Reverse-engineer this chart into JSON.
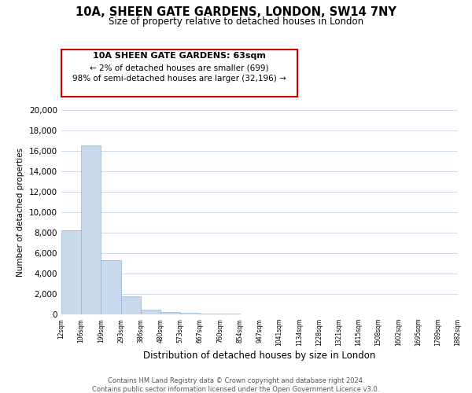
{
  "title": "10A, SHEEN GATE GARDENS, LONDON, SW14 7NY",
  "subtitle": "Size of property relative to detached houses in London",
  "bar_values": [
    8200,
    16500,
    5300,
    1800,
    500,
    200,
    150,
    100,
    50,
    0,
    0,
    0,
    0,
    0,
    0,
    0,
    0,
    0,
    0,
    0
  ],
  "categories": [
    "12sqm",
    "106sqm",
    "199sqm",
    "293sqm",
    "386sqm",
    "480sqm",
    "573sqm",
    "667sqm",
    "760sqm",
    "854sqm",
    "947sqm",
    "1041sqm",
    "1134sqm",
    "1228sqm",
    "1321sqm",
    "1415sqm",
    "1508sqm",
    "1602sqm",
    "1695sqm",
    "1789sqm",
    "1882sqm"
  ],
  "bar_color": "#c8d9ed",
  "bar_edge_color": "#94b4d4",
  "ylim": [
    0,
    20000
  ],
  "yticks": [
    0,
    2000,
    4000,
    6000,
    8000,
    10000,
    12000,
    14000,
    16000,
    18000,
    20000
  ],
  "xlabel": "Distribution of detached houses by size in London",
  "ylabel": "Number of detached properties",
  "annotation_title": "10A SHEEN GATE GARDENS: 63sqm",
  "annotation_line1": "← 2% of detached houses are smaller (699)",
  "annotation_line2": "98% of semi-detached houses are larger (32,196) →",
  "annotation_box_edge": "#cc0000",
  "footer1": "Contains HM Land Registry data © Crown copyright and database right 2024.",
  "footer2": "Contains public sector information licensed under the Open Government Licence v3.0.",
  "bg_color": "#ffffff",
  "grid_color": "#ccdaeb"
}
